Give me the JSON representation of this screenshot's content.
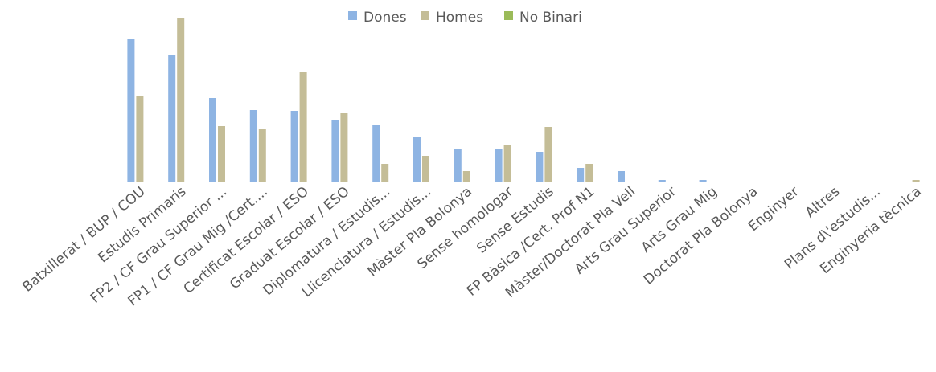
{
  "chart_data": {
    "type": "bar",
    "categories": [
      "Batxillerat / BUP / COU",
      "Estudis Primaris",
      "FP2 / CF Grau Superior ...",
      "FP1 / CF Grau Mig /Cert....",
      "Certificat Escolar / ESO",
      "Graduat Escolar / ESO",
      "Diplomatura / Estudis...",
      "Llicenciatura / Estudis...",
      "Màster Pla Bolonya",
      "Sense homologar",
      "Sense Estudis",
      "FP Bàsica /Cert. Prof N1",
      "Màster/Doctorat Pla Vell",
      "Arts Grau Superior",
      "Arts Grau Mig",
      "Doctorat Pla Bolonya",
      "Enginyer",
      "Altres",
      "Plans d\\'estudis...",
      "Enginyeria tècnica"
    ],
    "series": [
      {
        "name": "Dones",
        "color": "#8eb4e3",
        "values": [
          177,
          157,
          104,
          89,
          88,
          77,
          70,
          56,
          41,
          41,
          37,
          17,
          13,
          2,
          2,
          0,
          0,
          0,
          0,
          0
        ]
      },
      {
        "name": "Homes",
        "color": "#c4bd97",
        "values": [
          106,
          204,
          69,
          65,
          136,
          85,
          22,
          32,
          13,
          46,
          68,
          22,
          0,
          0,
          0,
          0,
          0,
          0,
          0,
          2
        ]
      },
      {
        "name": "No Binari",
        "color": "#9bbb59",
        "values": [
          0,
          0,
          0,
          0,
          0,
          0,
          0,
          0,
          0,
          0,
          0,
          0,
          0,
          0,
          0,
          0,
          0,
          0,
          0,
          0
        ]
      }
    ],
    "legend": "top"
  }
}
